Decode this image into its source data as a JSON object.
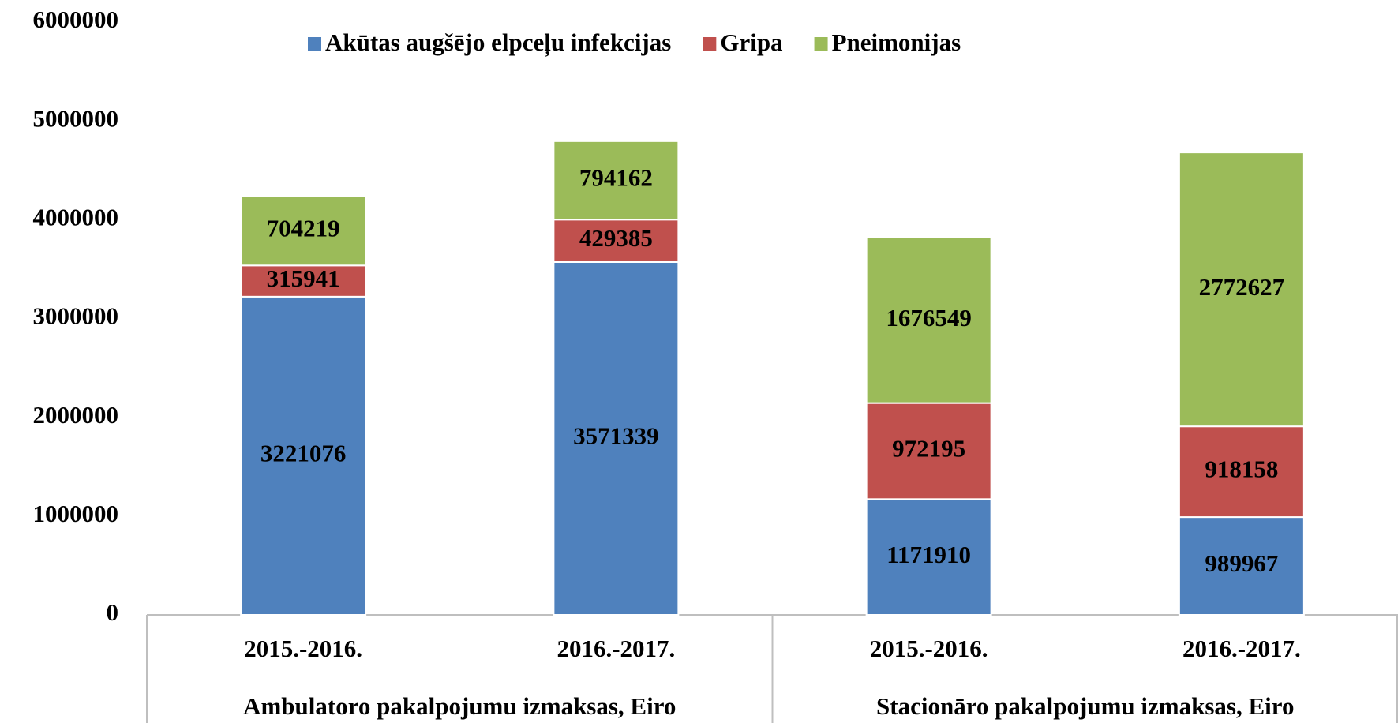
{
  "chart_data": {
    "type": "stacked_bar",
    "categories": [
      "2015.-2016.",
      "2016.-2017.",
      "2015.-2016.",
      "2016.-2017."
    ],
    "group_labels": [
      "Ambulatoro pakalpojumu izmaksas, Eiro",
      "Stacionāro pakalpojumu izmaksas, Eiro"
    ],
    "series": [
      {
        "name": "Akūtas augšējo elpceļu infekcijas",
        "color": "#4f81bd",
        "values": [
          3221076,
          3571339,
          1171910,
          989967
        ]
      },
      {
        "name": "Gripa",
        "color": "#c0504d",
        "values": [
          315941,
          429385,
          972195,
          918158
        ]
      },
      {
        "name": "Pneimonijas",
        "color": "#9bbb59",
        "values": [
          704219,
          794162,
          1676549,
          2772627
        ]
      }
    ],
    "ylim": [
      0,
      6000000
    ],
    "yticks": [
      0,
      1000000,
      2000000,
      3000000,
      4000000,
      5000000,
      6000000
    ],
    "legend": "top"
  }
}
